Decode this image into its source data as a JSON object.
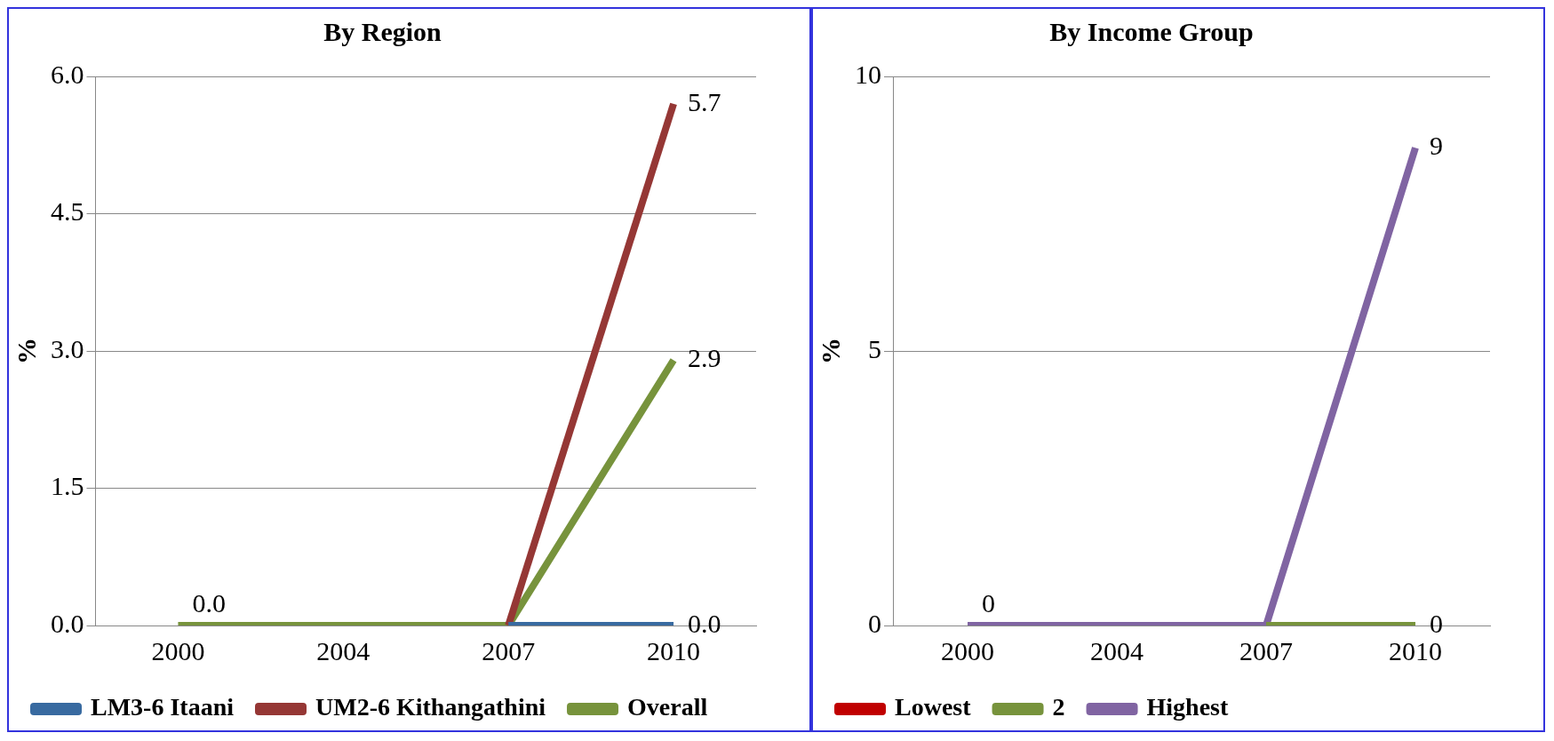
{
  "chart_data": [
    {
      "type": "line",
      "title": "By Region",
      "ylabel": "%",
      "categories": [
        "2000",
        "2004",
        "2007",
        "2010"
      ],
      "ylim": [
        0,
        6
      ],
      "yticks": [
        {
          "value": 0,
          "label": "0.0"
        },
        {
          "value": 1.5,
          "label": "1.5"
        },
        {
          "value": 3,
          "label": "3.0"
        },
        {
          "value": 4.5,
          "label": "4.5"
        },
        {
          "value": 6,
          "label": "6.0"
        }
      ],
      "grid": "y",
      "legend": "bottom",
      "marker": "none",
      "series": [
        {
          "name": "LM3-6 Itaani",
          "color": "#386aa0",
          "values": [
            null,
            null,
            0,
            0
          ],
          "value_labels": [
            null,
            null,
            null,
            "0.0"
          ]
        },
        {
          "name": "UM2-6 Kithangathini",
          "color": "#953735",
          "values": [
            null,
            null,
            0,
            5.7
          ],
          "value_labels": [
            null,
            null,
            null,
            "5.7"
          ]
        },
        {
          "name": "Overall",
          "color": "#77933c",
          "values": [
            0,
            0,
            0,
            2.9
          ],
          "value_labels": [
            "0.0",
            null,
            null,
            "2.9"
          ]
        }
      ]
    },
    {
      "type": "line",
      "title": "By Income Group",
      "ylabel": "%",
      "categories": [
        "2000",
        "2004",
        "2007",
        "2010"
      ],
      "ylim": [
        0,
        10
      ],
      "yticks": [
        0,
        5,
        10
      ],
      "grid": "y",
      "legend": "bottom",
      "marker": "none",
      "series": [
        {
          "name": "Lowest",
          "color": "#c00000",
          "values": [
            null,
            null,
            null,
            null
          ]
        },
        {
          "name": "2",
          "color": "#77933c",
          "values": [
            null,
            null,
            0,
            0
          ],
          "value_labels": [
            null,
            null,
            null,
            "0"
          ]
        },
        {
          "name": "Highest",
          "color": "#8064a2",
          "values": [
            0,
            0,
            0,
            8.7
          ],
          "value_labels": [
            "0",
            null,
            null,
            "9"
          ]
        }
      ]
    }
  ]
}
